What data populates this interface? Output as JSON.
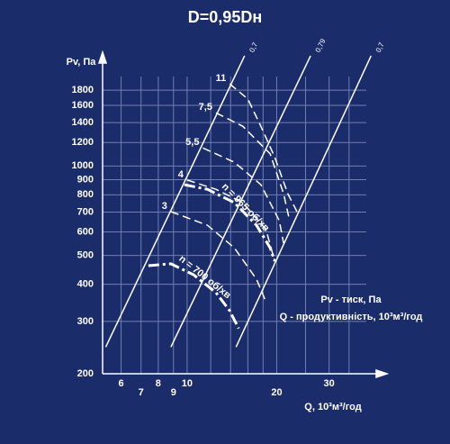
{
  "chart_data": {
    "type": "line",
    "title": "D=0,95Dн",
    "y_label": "Pv, Па",
    "x_label": "Q, 10³м³/год",
    "notes": [
      "Pv - тиск, Па",
      "Q - продуктивність, 10³м³/год"
    ],
    "xscale": "log",
    "yscale": "log",
    "xlim": [
      5.2,
      40
    ],
    "ylim": [
      200,
      2000
    ],
    "xticks": [
      6,
      7,
      8,
      9,
      10,
      20,
      30
    ],
    "x_minor_grid": [
      12,
      14,
      16,
      18,
      25,
      35
    ],
    "yticks": [
      200,
      300,
      400,
      500,
      600,
      700,
      800,
      900,
      1000,
      1200,
      1400,
      1600,
      1800
    ],
    "grid": true,
    "grid_color": "#6f7fb0",
    "background": "#1b2c6b",
    "color": "#ffffff",
    "series": [
      {
        "name": "0,7",
        "style": "solid",
        "x": [
          5.33,
          15.6
        ],
        "values": [
          246,
          2350
        ]
      },
      {
        "name": "0,79",
        "style": "solid",
        "x": [
          8.82,
          26.0
        ],
        "values": [
          246,
          2350
        ]
      },
      {
        "name": "0,7",
        "style": "solid",
        "x": [
          14.6,
          41.5
        ],
        "values": [
          246,
          2350
        ]
      },
      {
        "name": "11",
        "style": "dashed",
        "x": [
          13.9,
          16.0,
          17.7,
          19.7,
          21.8,
          23.4
        ],
        "values": [
          1890,
          1680,
          1360,
          1070,
          807,
          702
        ]
      },
      {
        "name": "7,5",
        "style": "dashed",
        "x": [
          12.5,
          15.4,
          19.0,
          21.1,
          22.1
        ],
        "values": [
          1510,
          1360,
          1100,
          807,
          655
        ]
      },
      {
        "name": "5,5",
        "style": "dashed",
        "x": [
          11.3,
          14.4,
          17.7,
          20.4,
          21.1
        ],
        "values": [
          1150,
          1030,
          865,
          655,
          550
        ]
      },
      {
        "name": "4",
        "style": "dashed",
        "x": [
          10,
          12.5,
          15.4,
          18.4,
          19.7
        ],
        "values": [
          897,
          835,
          753,
          611,
          478
        ]
      },
      {
        "name": "3",
        "style": "dashed",
        "x": [
          8.82,
          11.7,
          14.4,
          17.1,
          18.4
        ],
        "values": [
          702,
          632,
          531,
          416,
          349
        ]
      },
      {
        "name": "n = 965 об/хв",
        "style": "thick",
        "x": [
          9.79,
          11.7,
          14.4,
          17.1,
          19.0,
          19.7
        ],
        "values": [
          865,
          835,
          753,
          632,
          531,
          478
        ]
      },
      {
        "name": "n = 700 об/хв",
        "style": "thick",
        "x": [
          7.41,
          8.82,
          10.5,
          12.5,
          13.9,
          14.9
        ],
        "values": [
          462,
          469,
          431,
          375,
          326,
          284
        ]
      }
    ]
  }
}
